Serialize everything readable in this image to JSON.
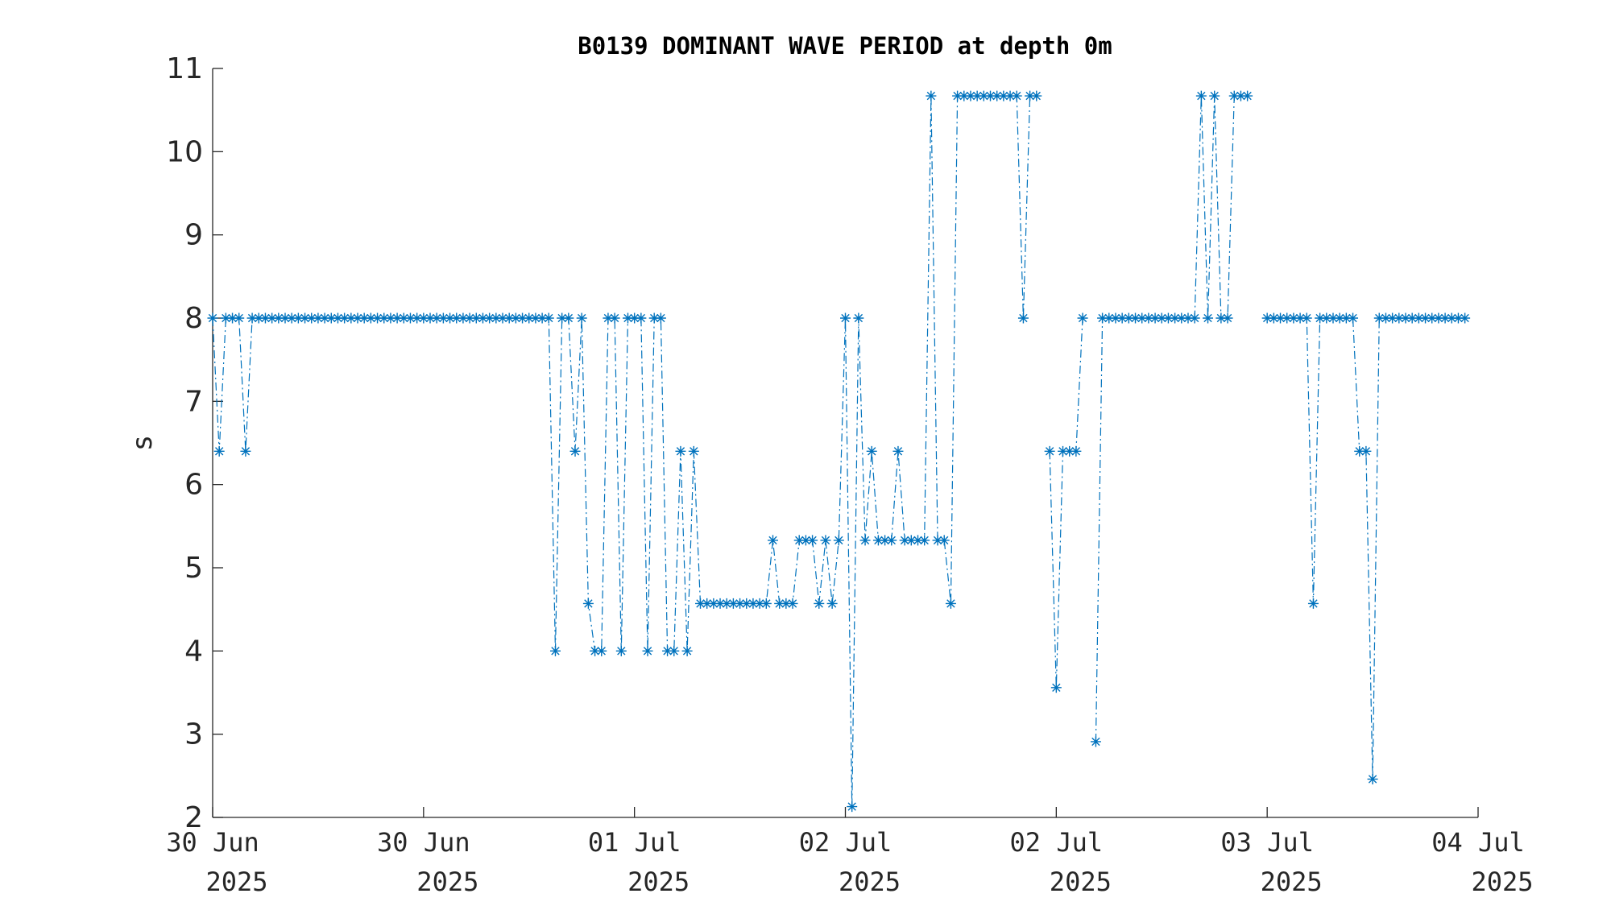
{
  "chart_data": {
    "type": "line",
    "title": "B0139 DOMINANT WAVE PERIOD at depth 0m",
    "y_label": "s",
    "color": "#0072bd",
    "line_style": "dashdot",
    "marker": "star",
    "xlim": [
      0,
      96
    ],
    "ylim": [
      2,
      11
    ],
    "yticks": [
      2,
      3,
      4,
      5,
      6,
      7,
      8,
      9,
      10,
      11
    ],
    "xticks": [
      {
        "value": 0,
        "label": [
          "30 Jun",
          "2025"
        ]
      },
      {
        "value": 16,
        "label": [
          "30 Jun",
          "2025"
        ]
      },
      {
        "value": 32,
        "label": [
          "01 Jul",
          "2025"
        ]
      },
      {
        "value": 48,
        "label": [
          "02 Jul",
          "2025"
        ]
      },
      {
        "value": 64,
        "label": [
          "02 Jul",
          "2025"
        ]
      },
      {
        "value": 80,
        "label": [
          "03 Jul",
          "2025"
        ]
      },
      {
        "value": 96,
        "label": [
          "04 Jul",
          "2025"
        ]
      }
    ],
    "x": [
      0,
      0.5,
      1,
      1.5,
      2,
      2.5,
      3,
      3.5,
      4,
      4.5,
      5,
      5.5,
      6,
      6.5,
      7,
      7.5,
      8,
      8.5,
      9,
      9.5,
      10,
      10.5,
      11,
      11.5,
      12,
      12.5,
      13,
      13.5,
      14,
      14.5,
      15,
      15.5,
      16,
      16.5,
      17,
      17.5,
      18,
      18.5,
      19,
      19.5,
      20,
      20.5,
      21,
      21.5,
      22,
      22.5,
      23,
      23.5,
      24,
      24.5,
      25,
      25.5,
      26,
      26.5,
      27,
      27.5,
      28,
      28.5,
      29,
      29.5,
      30,
      30.5,
      31,
      31.5,
      32,
      32.5,
      33,
      33.5,
      34,
      34.5,
      35,
      35.5,
      36,
      36.5,
      37,
      37.5,
      38,
      38.5,
      39,
      39.5,
      40,
      40.5,
      41,
      41.5,
      42,
      42.5,
      43,
      43.5,
      44,
      44.5,
      45,
      45.5,
      46,
      46.5,
      47,
      47.5,
      48,
      48.5,
      49,
      49.5,
      50,
      50.5,
      51,
      51.5,
      52,
      52.5,
      53,
      53.5,
      54,
      54.5,
      55,
      55.5,
      56,
      56.5,
      57,
      57.5,
      58,
      58.5,
      59,
      59.5,
      60,
      60.5,
      61,
      61.5,
      62,
      62.5,
      63,
      63.5,
      64,
      64.5,
      65,
      65.5,
      66,
      66.5,
      67,
      67.5,
      68,
      68.5,
      69,
      69.5,
      70,
      70.5,
      71,
      71.5,
      72,
      72.5,
      73,
      73.5,
      74,
      74.5,
      75,
      75.5,
      76,
      76.5,
      77,
      77.5,
      78,
      78.5,
      79,
      79.5,
      80,
      80.5,
      81,
      81.5,
      82,
      82.5,
      83,
      83.5,
      84,
      84.5,
      85,
      85.5,
      86,
      86.5,
      87,
      87.5,
      88,
      88.5,
      89,
      89.5,
      90,
      90.5,
      91,
      91.5,
      92,
      92.5,
      93,
      93.5,
      94,
      94.5,
      95
    ],
    "values": [
      8,
      6.4,
      8,
      8,
      8,
      6.4,
      8,
      8,
      8,
      8,
      8,
      8,
      8,
      8,
      8,
      8,
      8,
      8,
      8,
      8,
      8,
      8,
      8,
      8,
      8,
      8,
      8,
      8,
      8,
      8,
      8,
      8,
      8,
      8,
      8,
      8,
      8,
      8,
      8,
      8,
      8,
      8,
      8,
      8,
      8,
      8,
      8,
      8,
      8,
      8,
      8,
      8,
      4,
      8,
      8,
      6.4,
      8,
      4.57,
      4,
      4,
      8,
      8,
      4,
      8,
      8,
      8,
      4,
      8,
      8,
      4,
      4,
      6.4,
      4,
      6.4,
      4.57,
      4.57,
      4.57,
      4.57,
      4.57,
      4.57,
      4.57,
      4.57,
      4.57,
      4.57,
      4.57,
      5.33,
      4.57,
      4.57,
      4.57,
      5.33,
      5.33,
      5.33,
      4.57,
      5.33,
      4.57,
      5.33,
      8,
      2.13,
      8,
      5.33,
      6.4,
      5.33,
      5.33,
      5.33,
      6.4,
      5.33,
      5.33,
      5.33,
      5.33,
      10.67,
      5.33,
      5.33,
      4.57,
      10.67,
      10.67,
      10.67,
      10.67,
      10.67,
      10.67,
      10.67,
      10.67,
      10.67,
      10.67,
      8,
      10.67,
      10.67,
      null,
      6.4,
      3.56,
      6.4,
      6.4,
      6.4,
      8,
      null,
      2.91,
      8,
      8,
      8,
      8,
      8,
      8,
      8,
      8,
      8,
      8,
      8,
      8,
      8,
      8,
      8,
      10.67,
      8,
      10.67,
      8,
      8,
      10.67,
      10.67,
      10.67,
      null,
      null,
      8,
      8,
      8,
      8,
      8,
      8,
      8,
      4.57,
      8,
      8,
      8,
      8,
      8,
      8,
      6.4,
      6.4,
      2.46,
      8,
      8,
      8,
      8,
      8,
      8,
      8,
      8,
      8,
      8,
      8,
      8,
      8,
      8
    ]
  }
}
